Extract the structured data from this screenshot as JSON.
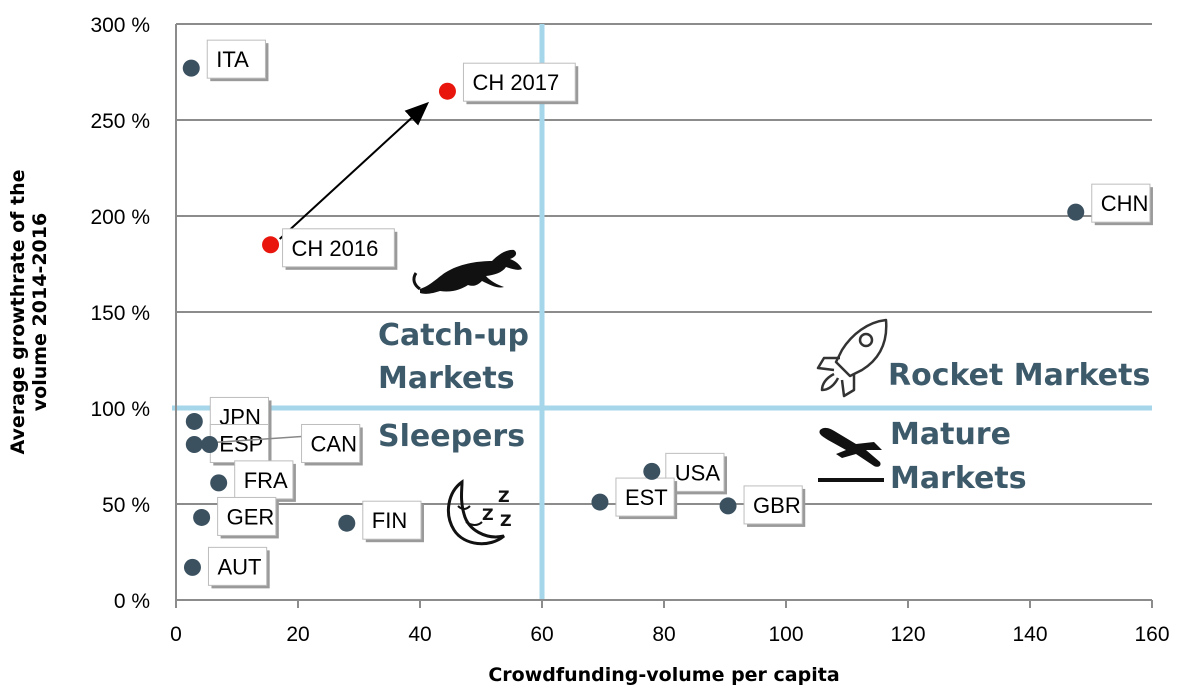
{
  "chart_data": {
    "type": "scatter",
    "title": "",
    "xlabel": "Crowdfunding-volume per capita",
    "ylabel_lines": [
      "Average growthrate of the",
      "volume 2014-2016"
    ],
    "xlim": [
      0,
      160
    ],
    "ylim": [
      0,
      300
    ],
    "x_ticks": [
      {
        "value": 0,
        "label": "0"
      },
      {
        "value": 20,
        "label": "20"
      },
      {
        "value": 40,
        "label": "40"
      },
      {
        "value": 60,
        "label": "60"
      },
      {
        "value": 80,
        "label": "80"
      },
      {
        "value": 100,
        "label": "100"
      },
      {
        "value": 120,
        "label": "120"
      },
      {
        "value": 140,
        "label": "140"
      },
      {
        "value": 160,
        "label": "160"
      }
    ],
    "y_ticks": [
      {
        "value": 0,
        "label": "0 %"
      },
      {
        "value": 50,
        "label": "50 %"
      },
      {
        "value": 100,
        "label": "100 %"
      },
      {
        "value": 150,
        "label": "150 %"
      },
      {
        "value": 200,
        "label": "200 %"
      },
      {
        "value": 250,
        "label": "250 %"
      },
      {
        "value": 300,
        "label": "300 %"
      }
    ],
    "grid": "horizontal",
    "divider_x": 60,
    "divider_y": 100,
    "highlight_color": "#e8160c",
    "point_color": "#3b5160",
    "divider_color": "#a6d6ea",
    "points": [
      {
        "label": "ITA",
        "x": 2.5,
        "y": 277,
        "highlight": false
      },
      {
        "label": "CH 2017",
        "x": 44.5,
        "y": 265,
        "highlight": true
      },
      {
        "label": "CH 2016",
        "x": 15.5,
        "y": 185,
        "highlight": true
      },
      {
        "label": "CHN",
        "x": 147.5,
        "y": 202,
        "highlight": false
      },
      {
        "label": "JPN",
        "x": 3,
        "y": 93,
        "highlight": false
      },
      {
        "label": "ESP",
        "x": 3,
        "y": 81,
        "highlight": false
      },
      {
        "label": "CAN",
        "x": 5.5,
        "y": 81,
        "highlight": false
      },
      {
        "label": "FRA",
        "x": 7,
        "y": 61,
        "highlight": false
      },
      {
        "label": "GER",
        "x": 4.2,
        "y": 43,
        "highlight": false
      },
      {
        "label": "AUT",
        "x": 2.7,
        "y": 17,
        "highlight": false
      },
      {
        "label": "FIN",
        "x": 28,
        "y": 40,
        "highlight": false
      },
      {
        "label": "USA",
        "x": 78,
        "y": 67,
        "highlight": false
      },
      {
        "label": "EST",
        "x": 69.5,
        "y": 51,
        "highlight": false
      },
      {
        "label": "GBR",
        "x": 90.5,
        "y": 49,
        "highlight": false
      }
    ],
    "arrow": {
      "from": [
        17,
        188
      ],
      "to": [
        41,
        258
      ]
    },
    "quadrants": [
      {
        "name": "catch-up",
        "lines": [
          "Catch-up",
          "Markets"
        ],
        "icon": "panther-icon"
      },
      {
        "name": "rocket",
        "lines": [
          "Rocket Markets"
        ],
        "icon": "rocket-icon"
      },
      {
        "name": "sleepers",
        "lines": [
          "Sleepers"
        ],
        "icon": "sleeping-moon-icon"
      },
      {
        "name": "mature",
        "lines": [
          "Mature",
          "Markets"
        ],
        "icon": "landing-plane-icon"
      }
    ]
  }
}
